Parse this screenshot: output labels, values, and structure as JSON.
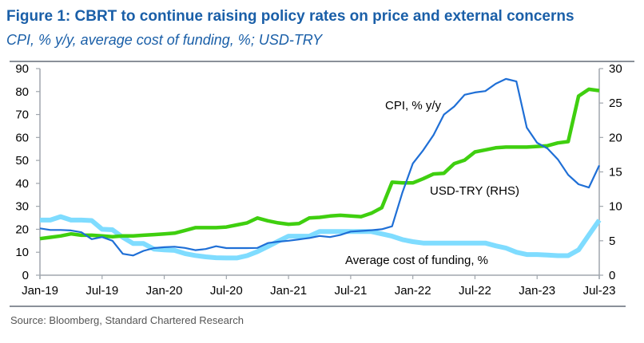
{
  "title": "Figure 1: CBRT to continue raising policy rates on price and external concerns",
  "subtitle": "CPI, % y/y, average cost of funding, %; USD-TRY",
  "source": "Source: Bloomberg, Standard Chartered Research",
  "chart_data": {
    "type": "line",
    "title": "Figure 1: CBRT to continue raising policy rates on price and external concerns",
    "subtitle": "CPI, % y/y, average cost of funding, %; USD-TRY",
    "x_start": "Jan-19",
    "x_frequency": "monthly",
    "x_tick_labels": [
      "Jan-19",
      "Jul-19",
      "Jan-20",
      "Jul-20",
      "Jan-21",
      "Jul-21",
      "Jan-22",
      "Jul-22",
      "Jan-23",
      "Jul-23"
    ],
    "y_left": {
      "ylim": [
        0,
        90
      ],
      "ticks": [
        0,
        10,
        20,
        30,
        40,
        50,
        60,
        70,
        80,
        90
      ]
    },
    "y_right": {
      "ylim": [
        0,
        30
      ],
      "ticks": [
        0,
        5,
        10,
        15,
        20,
        25,
        30
      ]
    },
    "grid": false,
    "series": [
      {
        "name": "CPI, % y/y",
        "axis": "left",
        "color": "#1f6fd6",
        "values": [
          20.4,
          19.7,
          19.7,
          19.5,
          18.7,
          15.7,
          16.6,
          15.0,
          9.3,
          8.6,
          10.6,
          11.8,
          12.2,
          12.4,
          11.9,
          10.9,
          11.4,
          12.6,
          11.8,
          11.8,
          11.8,
          11.9,
          14.0,
          14.6,
          15.0,
          15.6,
          16.2,
          17.1,
          16.6,
          17.5,
          19.0,
          19.3,
          19.6,
          20.0,
          21.3,
          36.1,
          48.7,
          54.4,
          61.1,
          70.0,
          73.5,
          78.6,
          79.6,
          80.2,
          83.4,
          85.5,
          84.4,
          64.3,
          57.7,
          55.2,
          50.5,
          43.7,
          39.6,
          38.2,
          47.8
        ]
      },
      {
        "name": "Average cost of funding, %",
        "axis": "left",
        "color": "#7fdcff",
        "values": [
          24.0,
          24.0,
          25.5,
          24.0,
          24.0,
          23.8,
          20.0,
          19.8,
          16.5,
          13.8,
          13.8,
          11.4,
          11.0,
          10.8,
          9.4,
          8.6,
          8.0,
          7.6,
          7.5,
          7.5,
          8.5,
          10.3,
          12.5,
          14.8,
          17.0,
          17.0,
          17.0,
          19.0,
          19.0,
          19.0,
          19.0,
          19.0,
          19.0,
          18.0,
          17.0,
          15.5,
          14.6,
          14.0,
          14.0,
          14.0,
          14.0,
          14.0,
          14.0,
          14.0,
          12.8,
          11.8,
          10.0,
          9.0,
          9.0,
          8.8,
          8.5,
          8.5,
          11.0,
          17.5,
          24.0
        ]
      },
      {
        "name": "USD-TRY (RHS)",
        "axis": "right",
        "color": "#3fcf0f",
        "values": [
          5.3,
          5.5,
          5.7,
          6.0,
          5.8,
          5.8,
          5.7,
          5.6,
          5.7,
          5.7,
          5.8,
          5.9,
          6.0,
          6.1,
          6.5,
          6.9,
          6.9,
          6.9,
          7.0,
          7.3,
          7.6,
          8.3,
          7.9,
          7.6,
          7.4,
          7.5,
          8.3,
          8.4,
          8.6,
          8.7,
          8.6,
          8.5,
          9.0,
          9.8,
          13.5,
          13.4,
          13.4,
          14.0,
          14.7,
          14.8,
          16.2,
          16.7,
          17.9,
          18.2,
          18.5,
          18.6,
          18.6,
          18.6,
          18.7,
          18.8,
          19.2,
          19.4,
          26.0,
          27.0,
          26.8
        ]
      }
    ],
    "annotations": [
      {
        "text": "CPI, % y/y",
        "series": "CPI, % y/y"
      },
      {
        "text": "USD-TRY (RHS)",
        "series": "USD-TRY (RHS)"
      },
      {
        "text": "Average cost of funding, %",
        "series": "Average cost of funding, %"
      }
    ]
  }
}
